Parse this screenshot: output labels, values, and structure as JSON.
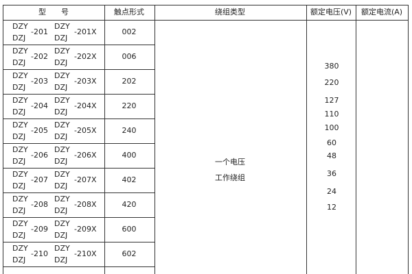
{
  "header": {
    "model": "型　　号",
    "contact": "触点形式",
    "winding": "绕组类型",
    "voltage": "额定电压(V)",
    "current": "额定电流(A)"
  },
  "rows": [
    {
      "a": "DZY",
      "b": "DZJ",
      "n": "-201",
      "c": "DZY",
      "d": "DZJ",
      "nx": "-201X",
      "contact": "002"
    },
    {
      "a": "DZY",
      "b": "DZJ",
      "n": "-202",
      "c": "DZY",
      "d": "DZJ",
      "nx": "-202X",
      "contact": "006"
    },
    {
      "a": "DZY",
      "b": "DZJ",
      "n": "-203",
      "c": "DZY",
      "d": "DZJ",
      "nx": "-203X",
      "contact": "202"
    },
    {
      "a": "DZY",
      "b": "DZJ",
      "n": "-204",
      "c": "DZY",
      "d": "DZJ",
      "nx": "-204X",
      "contact": "220"
    },
    {
      "a": "DZY",
      "b": "DZJ",
      "n": "-205",
      "c": "DZY",
      "d": "DZJ",
      "nx": "-205X",
      "contact": "240"
    },
    {
      "a": "DZY",
      "b": "DZJ",
      "n": "-206",
      "c": "DZY",
      "d": "DZJ",
      "nx": "-206X",
      "contact": "400"
    },
    {
      "a": "DZY",
      "b": "DZJ",
      "n": "-207",
      "c": "DZY",
      "d": "DZJ",
      "nx": "-207X",
      "contact": "402"
    },
    {
      "a": "DZY",
      "b": "DZJ",
      "n": "-208",
      "c": "DZY",
      "d": "DZJ",
      "nx": "-208X",
      "contact": "420"
    },
    {
      "a": "DZY",
      "b": "DZJ",
      "n": "-209",
      "c": "DZY",
      "d": "DZJ",
      "nx": "-209X",
      "contact": "600"
    },
    {
      "a": "DZY",
      "b": "DZJ",
      "n": "-210",
      "c": "DZY",
      "d": "DZJ",
      "nx": "-210X",
      "contact": "602"
    }
  ],
  "winding": {
    "line1": "一个电压",
    "line2": "工作绕组"
  },
  "voltages": [
    "380",
    "220",
    "127",
    "110",
    "100",
    "60",
    "48",
    "36",
    "24",
    "12"
  ]
}
